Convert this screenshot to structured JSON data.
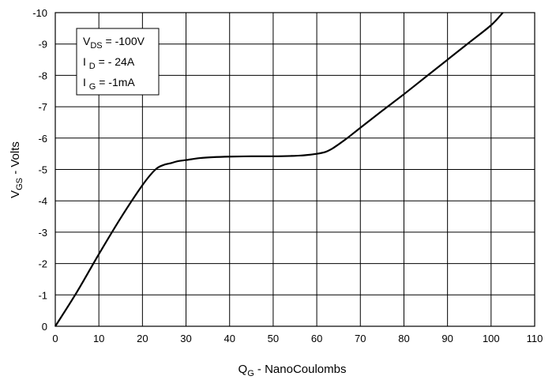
{
  "chart_data": {
    "type": "line",
    "xlabel": {
      "main": "Q",
      "sub": "G",
      "rest": " - NanoCoulombs"
    },
    "ylabel": {
      "main": "V",
      "sub": "GS",
      "rest": " - Volts"
    },
    "xlim": [
      0,
      110
    ],
    "ylim": [
      0,
      -10
    ],
    "xticks": [
      "0",
      "10",
      "20",
      "30",
      "40",
      "50",
      "60",
      "70",
      "80",
      "90",
      "100",
      "110"
    ],
    "yticks": [
      "0",
      "-1",
      "-2",
      "-3",
      "-4",
      "-5",
      "-6",
      "-7",
      "-8",
      "-9",
      "-10"
    ],
    "grid": true,
    "legend_location": "top-left",
    "annotation": [
      {
        "main": "V",
        "sub": "DS",
        "rest": " = -100V"
      },
      {
        "main": "I ",
        "sub": "D",
        "rest": " = - 24A"
      },
      {
        "main": "I ",
        "sub": "G",
        "rest": " = -1mA"
      }
    ],
    "series": [
      {
        "color": "#000000",
        "x": [
          0,
          5,
          10,
          15,
          20,
          23,
          25,
          26.5,
          28,
          30,
          33,
          36,
          40,
          45,
          50,
          54,
          57,
          60,
          62,
          63.5,
          65,
          67,
          70,
          75,
          80,
          85,
          90,
          95,
          100,
          102.7
        ],
        "y": [
          0,
          -1.1,
          -2.3,
          -3.45,
          -4.5,
          -5.0,
          -5.15,
          -5.2,
          -5.26,
          -5.3,
          -5.36,
          -5.39,
          -5.41,
          -5.42,
          -5.42,
          -5.43,
          -5.45,
          -5.5,
          -5.56,
          -5.66,
          -5.8,
          -6.0,
          -6.33,
          -6.87,
          -7.4,
          -7.95,
          -8.5,
          -9.05,
          -9.6,
          -10.0
        ]
      }
    ]
  }
}
